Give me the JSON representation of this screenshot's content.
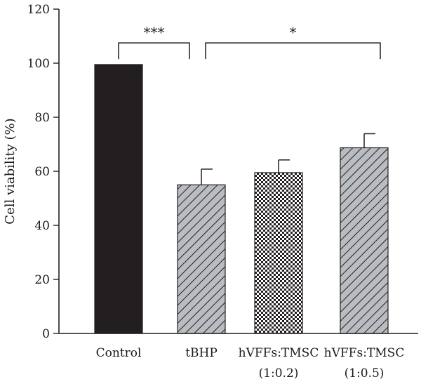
{
  "chart_data": {
    "type": "bar",
    "title": "",
    "xlabel": "",
    "ylabel": "Cell viability (%)",
    "ylim": [
      0,
      120
    ],
    "yticks": [
      0,
      20,
      40,
      60,
      80,
      100,
      120
    ],
    "grid": false,
    "categories": [
      {
        "line1": "Control",
        "line2": ""
      },
      {
        "line1": "tBHP",
        "line2": ""
      },
      {
        "line1": "hVFFs:TMSC",
        "line2": "(1:0.2)"
      },
      {
        "line1": "hVFFs:TMSC",
        "line2": "(1:0.5)"
      }
    ],
    "values": [
      99.5,
      55.0,
      59.5,
      68.7
    ],
    "errors": [
      0,
      5.8,
      4.7,
      5.2
    ],
    "fills": [
      "solid-black",
      "diagonal-hatch-gray",
      "checker",
      "diagonal-hatch-gray"
    ],
    "colors": {
      "solid": "#231f20",
      "hatch_bg": "#b9bcc0",
      "line": "#231f20"
    },
    "significance": [
      {
        "from": 0,
        "to": 1,
        "label": "***",
        "y": 114
      },
      {
        "from": 1,
        "to": 3,
        "label": "*",
        "y": 114
      }
    ]
  }
}
